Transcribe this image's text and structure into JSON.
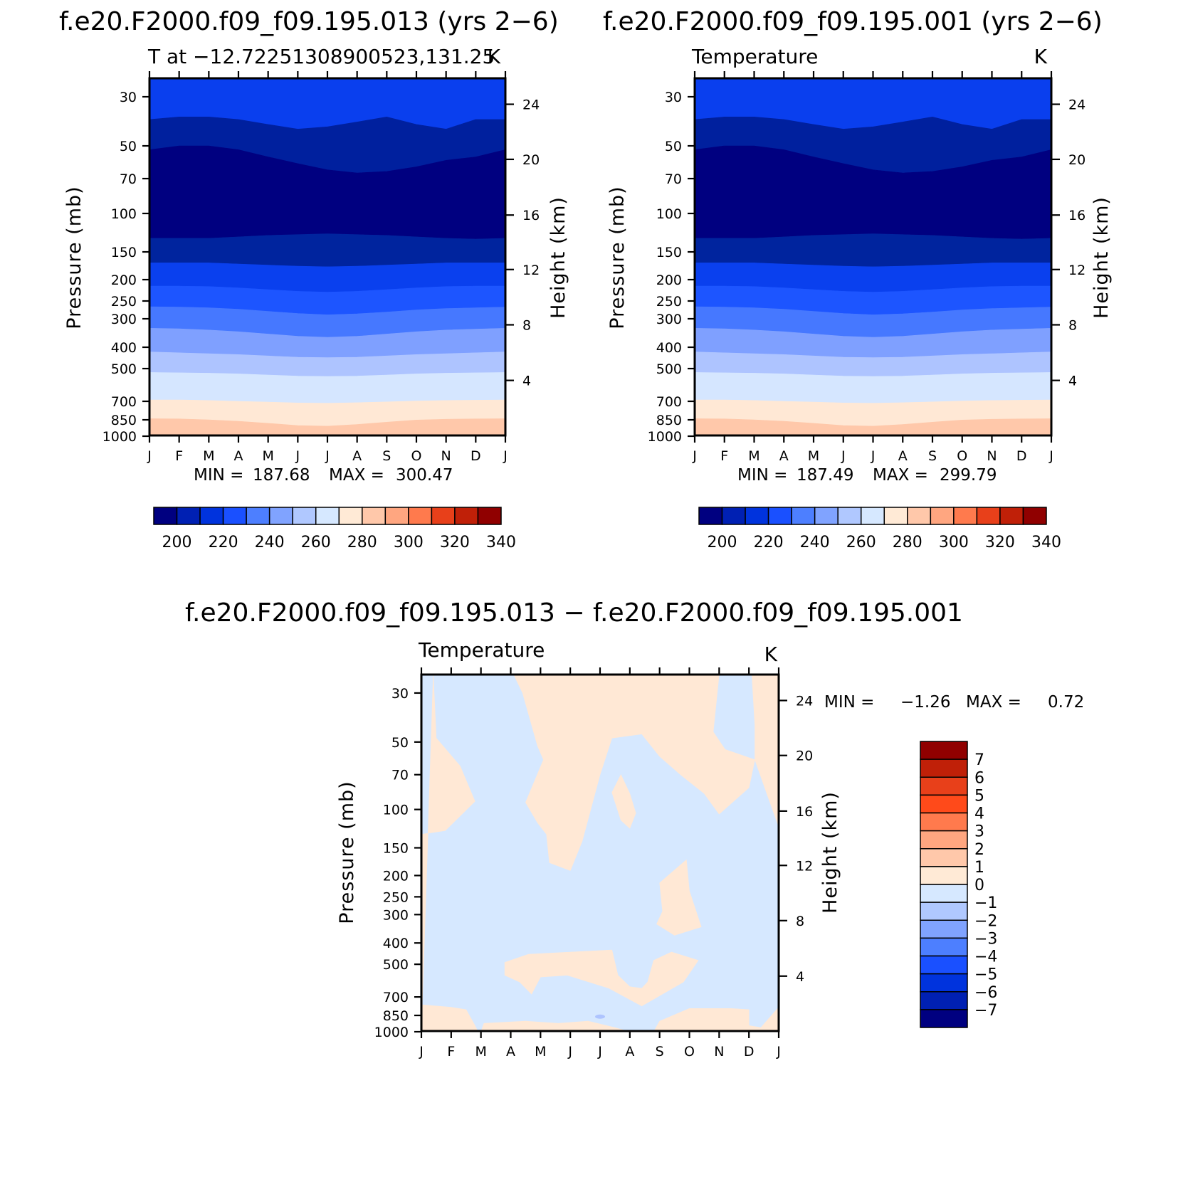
{
  "chart_data": [
    {
      "type": "heatmap",
      "title": "f.e20.F2000.f09_f09.195.013 (yrs 2−6)",
      "left_label": "T at −12.72251308900523,131.25",
      "right_label": "K",
      "xlabel": "",
      "ylabel": "Pressure (mb)",
      "ylabel_right": "Height (km)",
      "x_ticks": [
        "J",
        "F",
        "M",
        "A",
        "M",
        "J",
        "J",
        "A",
        "S",
        "O",
        "N",
        "D",
        "J"
      ],
      "y_ticks": [
        "30",
        "50",
        "70",
        "100",
        "150",
        "200",
        "250",
        "300",
        "400",
        "500",
        "700",
        "850",
        "1000"
      ],
      "y_right_ticks": [
        "24",
        "20",
        "16",
        "12",
        "8",
        "4"
      ],
      "ylim": [
        1000,
        20
      ],
      "scale": "log-pressure",
      "stats": {
        "min_label": "MIN =",
        "min": "187.68",
        "max_label": "MAX =",
        "max": "300.47"
      },
      "levels": [
        195,
        205,
        215,
        225,
        235,
        245,
        255,
        265,
        275,
        285,
        295
      ],
      "colorbar_ticks": [
        "200",
        "220",
        "240",
        "260",
        "280",
        "300",
        "320",
        "340"
      ],
      "colorbar_orientation": "horizontal"
    },
    {
      "type": "heatmap",
      "title": "f.e20.F2000.f09_f09.195.001 (yrs 2−6)",
      "left_label": "Temperature",
      "right_label": "K",
      "xlabel": "",
      "ylabel": "Pressure (mb)",
      "ylabel_right": "Height (km)",
      "x_ticks": [
        "J",
        "F",
        "M",
        "A",
        "M",
        "J",
        "J",
        "A",
        "S",
        "O",
        "N",
        "D",
        "J"
      ],
      "y_ticks": [
        "30",
        "50",
        "70",
        "100",
        "150",
        "200",
        "250",
        "300",
        "400",
        "500",
        "700",
        "850",
        "1000"
      ],
      "y_right_ticks": [
        "24",
        "20",
        "16",
        "12",
        "8",
        "4"
      ],
      "ylim": [
        1000,
        20
      ],
      "scale": "log-pressure",
      "stats": {
        "min_label": "MIN =",
        "min": "187.49",
        "max_label": "MAX =",
        "max": "299.79"
      },
      "levels": [
        195,
        205,
        215,
        225,
        235,
        245,
        255,
        265,
        275,
        285,
        295
      ],
      "colorbar_ticks": [
        "200",
        "220",
        "240",
        "260",
        "280",
        "300",
        "320",
        "340"
      ],
      "colorbar_orientation": "horizontal"
    },
    {
      "type": "heatmap",
      "title": "f.e20.F2000.f09_f09.195.013 − f.e20.F2000.f09_f09.195.001",
      "left_label": "Temperature",
      "right_label": "K",
      "xlabel": "",
      "ylabel": "Pressure (mb)",
      "ylabel_right": "Height (km)",
      "x_ticks": [
        "J",
        "F",
        "M",
        "A",
        "M",
        "J",
        "J",
        "A",
        "S",
        "O",
        "N",
        "D",
        "J"
      ],
      "y_ticks": [
        "30",
        "50",
        "70",
        "100",
        "150",
        "200",
        "250",
        "300",
        "400",
        "500",
        "700",
        "850",
        "1000"
      ],
      "y_right_ticks": [
        "24",
        "20",
        "16",
        "12",
        "8",
        "4"
      ],
      "ylim": [
        1000,
        20
      ],
      "scale": "log-pressure",
      "stats": {
        "min_label": "MIN =",
        "min": "−1.26",
        "max_label": "MAX =",
        "max": "0.72"
      },
      "positive_regions_month_pressure": [
        [
          [
            0.0,
            1000
          ],
          [
            0.0,
            130
          ],
          [
            0.8,
            125
          ],
          [
            1.8,
            92
          ],
          [
            1.3,
            64
          ],
          [
            0.5,
            48
          ],
          [
            0.4,
            20
          ]
        ],
        [
          [
            3.1,
            20
          ],
          [
            3.4,
            30
          ],
          [
            3.9,
            52
          ],
          [
            4.1,
            60
          ],
          [
            3.5,
            93
          ],
          [
            3.9,
            115
          ],
          [
            4.2,
            130
          ],
          [
            4.3,
            175
          ],
          [
            5.0,
            190
          ],
          [
            5.4,
            140
          ],
          [
            6.0,
            70
          ],
          [
            6.4,
            48
          ],
          [
            7.4,
            46
          ],
          [
            8.0,
            58
          ],
          [
            8.7,
            70
          ],
          [
            9.5,
            85
          ],
          [
            10.0,
            105
          ],
          [
            11.0,
            80
          ],
          [
            11.2,
            60
          ],
          [
            10.2,
            54
          ],
          [
            9.8,
            45
          ],
          [
            10.0,
            20
          ]
        ],
        [
          [
            11.1,
            20
          ],
          [
            11.8,
            20
          ],
          [
            12.0,
            20
          ],
          [
            12.0,
            120
          ],
          [
            11.6,
            85
          ],
          [
            11.2,
            60
          ],
          [
            11.2,
            42
          ]
        ],
        [
          [
            6.4,
            84
          ],
          [
            6.7,
            70
          ],
          [
            7.0,
            85
          ],
          [
            7.2,
            104
          ],
          [
            7.0,
            122
          ],
          [
            6.7,
            112
          ]
        ],
        [
          [
            8.0,
            216
          ],
          [
            8.9,
            170
          ],
          [
            9.0,
            235
          ],
          [
            9.4,
            340
          ],
          [
            8.5,
            370
          ],
          [
            7.9,
            330
          ],
          [
            8.1,
            290
          ]
        ],
        [
          [
            2.8,
            490
          ],
          [
            3.6,
            450
          ],
          [
            5.0,
            440
          ],
          [
            6.4,
            430
          ],
          [
            6.6,
            560
          ],
          [
            7.0,
            630
          ],
          [
            7.4,
            640
          ],
          [
            7.6,
            600
          ],
          [
            7.8,
            480
          ],
          [
            8.4,
            440
          ],
          [
            9.3,
            480
          ],
          [
            8.8,
            600
          ],
          [
            7.4,
            770
          ],
          [
            6.3,
            640
          ],
          [
            4.9,
            560
          ],
          [
            4.0,
            570
          ],
          [
            3.7,
            680
          ],
          [
            3.3,
            600
          ],
          [
            2.8,
            560
          ]
        ],
        [
          [
            0.0,
            760
          ],
          [
            1.0,
            780
          ],
          [
            1.5,
            800
          ],
          [
            1.8,
            940
          ],
          [
            1.9,
            1000
          ],
          [
            0.0,
            1000
          ]
        ],
        [
          [
            2.1,
            920
          ],
          [
            3.5,
            900
          ],
          [
            4.6,
            920
          ],
          [
            5.6,
            900
          ],
          [
            6.5,
            960
          ],
          [
            7.0,
            1000
          ],
          [
            2.0,
            1000
          ]
        ],
        [
          [
            7.8,
            1000
          ],
          [
            8.0,
            900
          ],
          [
            9.0,
            790
          ],
          [
            10.4,
            790
          ],
          [
            11.0,
            800
          ],
          [
            11.0,
            940
          ],
          [
            11.4,
            960
          ],
          [
            12.0,
            780
          ],
          [
            12.0,
            1000
          ]
        ]
      ],
      "levels": [
        -7,
        -6,
        -5,
        -4,
        -3,
        -2,
        -1,
        0,
        1,
        2,
        3,
        4,
        5,
        6,
        7
      ],
      "colorbar_ticks": [
        "7",
        "6",
        "5",
        "4",
        "3",
        "2",
        "1",
        "0",
        "−1",
        "−2",
        "−3",
        "−4",
        "−5",
        "−6",
        "−7"
      ],
      "colorbar_orientation": "vertical"
    }
  ],
  "colors": {
    "cb_abs": [
      "#000080",
      "#0020b3",
      "#0033dd",
      "#1a50ff",
      "#4d7fff",
      "#80a3ff",
      "#b0c8ff",
      "#d6e8ff",
      "#ffead6",
      "#ffc8aa",
      "#ffa680",
      "#ff7a4d",
      "#e8401a",
      "#c02008",
      "#900000"
    ],
    "cb_diff": [
      "#000080",
      "#0020b3",
      "#0033dd",
      "#1a50ff",
      "#4d7fff",
      "#80a3ff",
      "#b0c8ff",
      "#d6e8ff",
      "#ffead6",
      "#ffc8aa",
      "#ffa680",
      "#ff7a4d",
      "#e8401a",
      "#c02008",
      "#900000"
    ],
    "band_abs": [
      "#000080",
      "#00189e",
      "#0030d0",
      "#0a3fee",
      "#1d55ff",
      "#4678ff",
      "#7fa0ff",
      "#aec4ff",
      "#d5e6ff",
      "#ffe8d5",
      "#ffc8aa",
      "#ffa982",
      "#ff9368"
    ],
    "band_diff_neg": "#d6e8ff",
    "band_diff_pos": "#ffe8d5"
  }
}
